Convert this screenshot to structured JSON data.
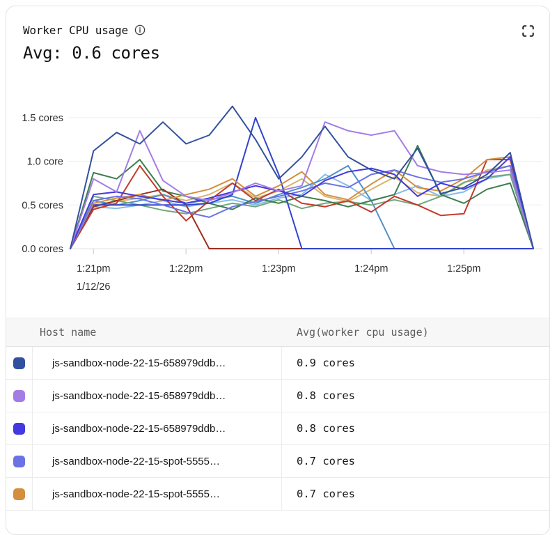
{
  "header": {
    "title": "Worker CPU usage",
    "average": "Avg: 0.6 cores",
    "info_icon": "info-circle",
    "expand_icon": "fullscreen-corners"
  },
  "table": {
    "columns": [
      "Host name",
      "Avg(worker cpu usage)"
    ],
    "rows": [
      {
        "color": "#31519e",
        "host": "js-sandbox-node-22-15-658979ddb…",
        "value": "0.9 cores"
      },
      {
        "color": "#a37ce6",
        "host": "js-sandbox-node-22-15-658979ddb…",
        "value": "0.8 cores"
      },
      {
        "color": "#4438de",
        "host": "js-sandbox-node-22-15-658979ddb…",
        "value": "0.8 cores"
      },
      {
        "color": "#6a72e6",
        "host": "js-sandbox-node-22-15-spot-5555…",
        "value": "0.7 cores"
      },
      {
        "color": "#d18f3f",
        "host": "js-sandbox-node-22-15-spot-5555…",
        "value": "0.7 cores"
      }
    ]
  },
  "chart_data": {
    "type": "line",
    "title": "Worker CPU usage",
    "unit": "cores",
    "grid": "horizontal",
    "legend_position": "table-below",
    "ylim": [
      0,
      1.75
    ],
    "y_axis": {
      "ticks": [
        {
          "label": "0.0 cores",
          "value": 0.0
        },
        {
          "label": "0.5 cores",
          "value": 0.5
        },
        {
          "label": "1.0 core",
          "value": 1.0
        },
        {
          "label": "1.5 cores",
          "value": 1.5
        }
      ]
    },
    "x_axis": {
      "date_label": "1/12/26",
      "ticks": [
        {
          "label": "1:21pm",
          "t": 15
        },
        {
          "label": "1:22pm",
          "t": 75
        },
        {
          "label": "1:23pm",
          "t": 135
        },
        {
          "label": "1:24pm",
          "t": 195
        },
        {
          "label": "1:25pm",
          "t": 255
        }
      ]
    },
    "t_seconds": [
      0,
      15,
      30,
      45,
      60,
      75,
      90,
      105,
      120,
      135,
      150,
      165,
      180,
      195,
      210,
      225,
      240,
      255,
      270,
      285,
      300
    ],
    "series": [
      {
        "color": "#31519e",
        "values": [
          0,
          1.12,
          1.33,
          1.2,
          1.45,
          1.2,
          1.3,
          1.63,
          1.25,
          0.8,
          1.05,
          1.4,
          1.05,
          0.9,
          0.8,
          1.15,
          0.63,
          0.7,
          0.85,
          1.1,
          0
        ]
      },
      {
        "color": "#a37ce6",
        "values": [
          0,
          0.8,
          0.65,
          1.35,
          0.78,
          0.6,
          0.55,
          0.64,
          0.75,
          0.66,
          0.72,
          1.45,
          1.35,
          1.3,
          1.35,
          0.95,
          0.88,
          0.85,
          0.87,
          0.9,
          0
        ]
      },
      {
        "color": "#4438de",
        "values": [
          0,
          0.62,
          0.65,
          0.6,
          0.56,
          0.52,
          0.58,
          0.65,
          0.72,
          0.66,
          0.6,
          0.78,
          0.88,
          0.92,
          0.85,
          0.6,
          0.75,
          0.68,
          0.8,
          1.05,
          0
        ]
      },
      {
        "color": "#6a72e6",
        "values": [
          0,
          0.55,
          0.6,
          0.57,
          0.5,
          0.42,
          0.36,
          0.48,
          0.54,
          0.6,
          0.66,
          0.75,
          0.7,
          0.85,
          0.9,
          0.82,
          0.76,
          0.8,
          0.88,
          0.95,
          0
        ]
      },
      {
        "color": "#d18f3f",
        "values": [
          0,
          0.52,
          0.58,
          0.62,
          0.55,
          0.62,
          0.68,
          0.8,
          0.6,
          0.72,
          0.88,
          0.62,
          0.56,
          0.74,
          0.9,
          0.7,
          0.66,
          0.8,
          1.02,
          1.05,
          0
        ]
      },
      {
        "color": "#3143ce",
        "values": [
          0,
          0.5,
          0.5,
          0.5,
          0.5,
          0.5,
          0.52,
          0.62,
          1.5,
          0.85,
          0,
          0,
          0,
          0,
          0,
          0,
          0,
          0,
          0,
          0,
          0
        ]
      },
      {
        "color": "#c23b2b",
        "values": [
          0,
          0.45,
          0.52,
          0.95,
          0.6,
          0.32,
          0.55,
          0.75,
          0.55,
          0.68,
          0.52,
          0.48,
          0.55,
          0.42,
          0.6,
          0.5,
          0.38,
          0.4,
          1.02,
          1.02,
          0
        ]
      },
      {
        "color": "#9c2e20",
        "values": [
          0,
          0.48,
          0.55,
          0.62,
          0.68,
          0.5,
          0,
          0,
          0,
          0,
          0,
          0,
          0,
          0,
          0,
          0,
          0,
          0,
          0,
          0,
          0
        ]
      },
      {
        "color": "#3e7d4e",
        "values": [
          0,
          0.87,
          0.8,
          1.02,
          0.66,
          0.6,
          0.52,
          0.45,
          0.58,
          0.52,
          0.6,
          0.55,
          0.48,
          0.55,
          0.62,
          1.18,
          0.62,
          0.52,
          0.68,
          0.75,
          0
        ]
      },
      {
        "color": "#6fa87a",
        "values": [
          0,
          0.6,
          0.55,
          0.5,
          0.44,
          0.4,
          0.46,
          0.52,
          0.48,
          0.56,
          0.46,
          0.52,
          0.54,
          0.5,
          0.56,
          0.5,
          0.6,
          0.76,
          0.82,
          0.85,
          0
        ]
      },
      {
        "color": "#4e8fc7",
        "values": [
          0,
          0.55,
          0.5,
          0.55,
          0.62,
          0.52,
          0.56,
          0.6,
          0.52,
          0.62,
          0.7,
          0.8,
          0.95,
          0.55,
          0,
          0,
          0,
          0,
          0,
          0,
          0
        ]
      },
      {
        "color": "#85bde8",
        "values": [
          0,
          0.48,
          0.46,
          0.5,
          0.55,
          0.48,
          0.52,
          0.56,
          0.5,
          0.58,
          0.62,
          0.85,
          0.72,
          0.55,
          0.62,
          0.72,
          0.6,
          0.65,
          0.8,
          0.85,
          0
        ]
      },
      {
        "color": "#d8b36c",
        "values": [
          0,
          0.5,
          0.54,
          0.58,
          0.62,
          0.55,
          0.62,
          0.75,
          0.58,
          0.66,
          0.8,
          0.6,
          0.54,
          0.68,
          0.82,
          0.64,
          0.6,
          0.75,
          0.9,
          0.95,
          0
        ]
      }
    ]
  }
}
